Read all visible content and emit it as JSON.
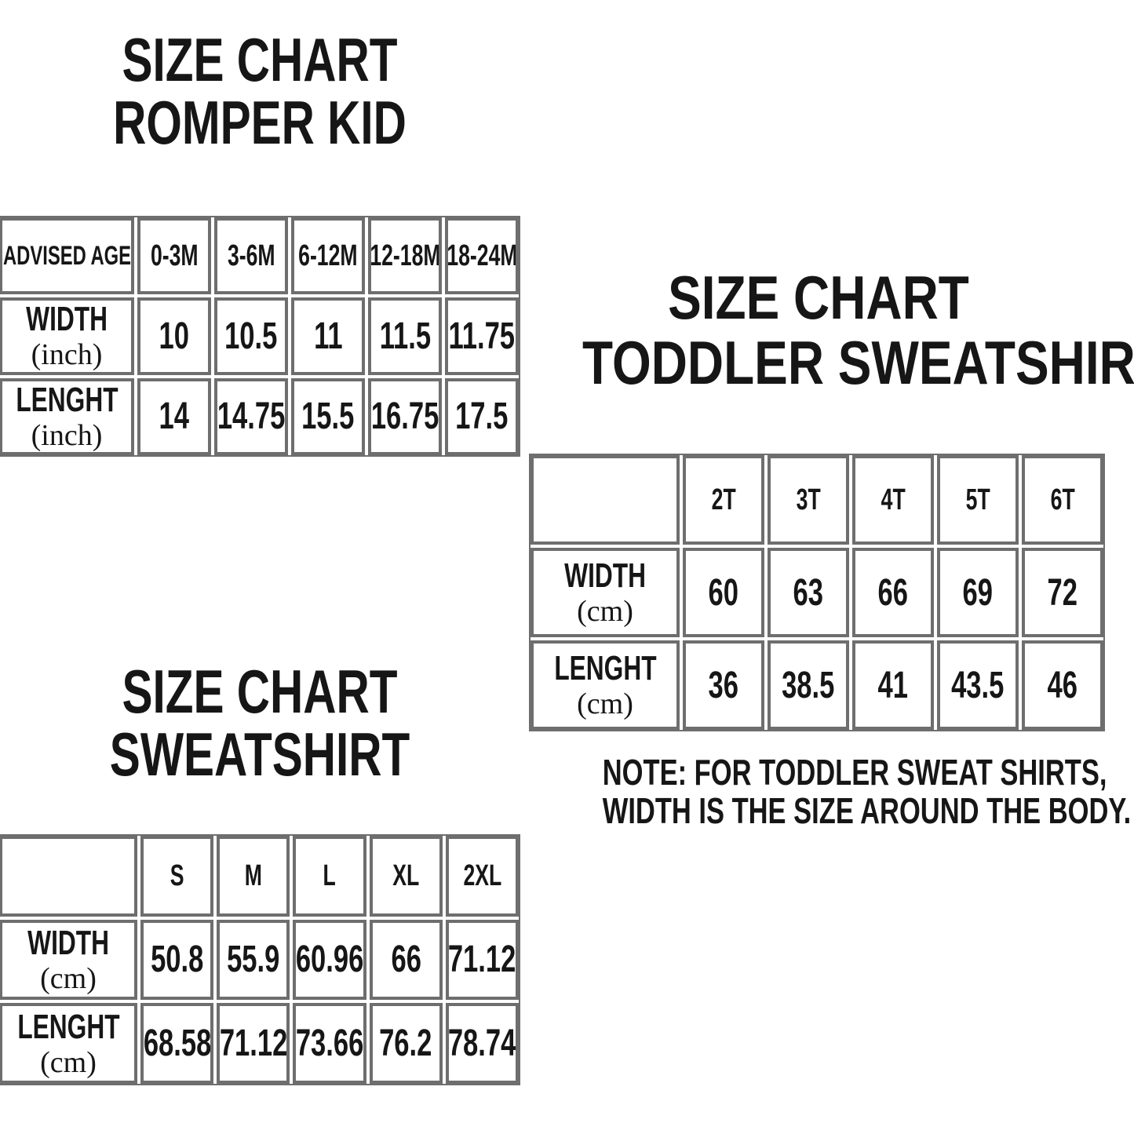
{
  "colors": {
    "border_gray": "#6e6e6e",
    "text_black": "#161616",
    "background": "#ffffff"
  },
  "chart_data": [
    {
      "id": "romper",
      "type": "table",
      "title_lines": [
        "SIZE CHART",
        "ROMPER KID"
      ],
      "corner_label": "ADVISED AGE",
      "columns": [
        "0-3M",
        "3-6M",
        "6-12M",
        "12-18M",
        "18-24M"
      ],
      "rows": [
        {
          "label": "WIDTH",
          "unit": "(inch)",
          "values": [
            10,
            10.5,
            11,
            11.5,
            11.75
          ]
        },
        {
          "label": "LENGHT",
          "unit": "(inch)",
          "values": [
            14,
            14.75,
            15.5,
            16.75,
            17.5
          ]
        }
      ]
    },
    {
      "id": "toddler-sweatshirt",
      "type": "table",
      "title_lines": [
        "SIZE CHART",
        "TODDLER SWEATSHIRT"
      ],
      "corner_label": "",
      "columns": [
        "2T",
        "3T",
        "4T",
        "5T",
        "6T"
      ],
      "rows": [
        {
          "label": "WIDTH",
          "unit": "(cm)",
          "values": [
            60,
            63,
            66,
            69,
            72
          ]
        },
        {
          "label": "LENGHT",
          "unit": "(cm)",
          "values": [
            36,
            38.5,
            41,
            43.5,
            46
          ]
        }
      ],
      "note_lines": [
        "NOTE: FOR TODDLER SWEAT SHIRTS,",
        "WIDTH IS THE SIZE AROUND THE BODY."
      ]
    },
    {
      "id": "sweatshirt",
      "type": "table",
      "title_lines": [
        "SIZE CHART",
        "SWEATSHIRT"
      ],
      "corner_label": "",
      "columns": [
        "S",
        "M",
        "L",
        "XL",
        "2XL"
      ],
      "rows": [
        {
          "label": "WIDTH",
          "unit": "(cm)",
          "values": [
            50.8,
            55.9,
            60.96,
            66,
            71.12
          ]
        },
        {
          "label": "LENGHT",
          "unit": "(cm)",
          "values": [
            68.58,
            71.12,
            73.66,
            76.2,
            78.74
          ]
        }
      ]
    }
  ]
}
